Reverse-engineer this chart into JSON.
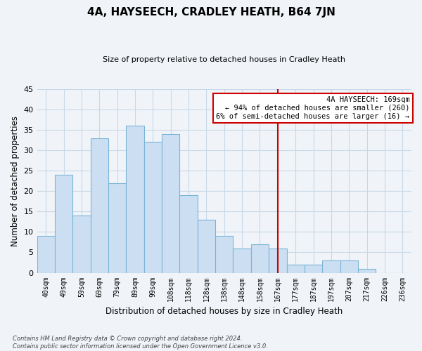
{
  "title": "4A, HAYSEECH, CRADLEY HEATH, B64 7JN",
  "subtitle": "Size of property relative to detached houses in Cradley Heath",
  "xlabel": "Distribution of detached houses by size in Cradley Heath",
  "ylabel": "Number of detached properties",
  "bar_labels": [
    "40sqm",
    "49sqm",
    "59sqm",
    "69sqm",
    "79sqm",
    "89sqm",
    "99sqm",
    "108sqm",
    "118sqm",
    "128sqm",
    "138sqm",
    "148sqm",
    "158sqm",
    "167sqm",
    "177sqm",
    "187sqm",
    "197sqm",
    "207sqm",
    "217sqm",
    "226sqm",
    "236sqm"
  ],
  "bar_values": [
    9,
    24,
    14,
    33,
    22,
    36,
    32,
    34,
    19,
    13,
    9,
    6,
    7,
    6,
    2,
    2,
    3,
    3,
    1,
    0,
    0
  ],
  "bar_color": "#ccdff2",
  "bar_edge_color": "#7ab4d8",
  "vline_x_index": 13,
  "vline_color": "#cc0000",
  "annotation_title": "4A HAYSEECH: 169sqm",
  "annotation_line1": "← 94% of detached houses are smaller (260)",
  "annotation_line2": "6% of semi-detached houses are larger (16) →",
  "annotation_box_color": "#ffffff",
  "annotation_box_edge_color": "#cc0000",
  "ylim": [
    0,
    45
  ],
  "yticks": [
    0,
    5,
    10,
    15,
    20,
    25,
    30,
    35,
    40,
    45
  ],
  "footer_line1": "Contains HM Land Registry data © Crown copyright and database right 2024.",
  "footer_line2": "Contains public sector information licensed under the Open Government Licence v3.0.",
  "background_color": "#f0f4f8",
  "grid_color": "#c8d8e8"
}
